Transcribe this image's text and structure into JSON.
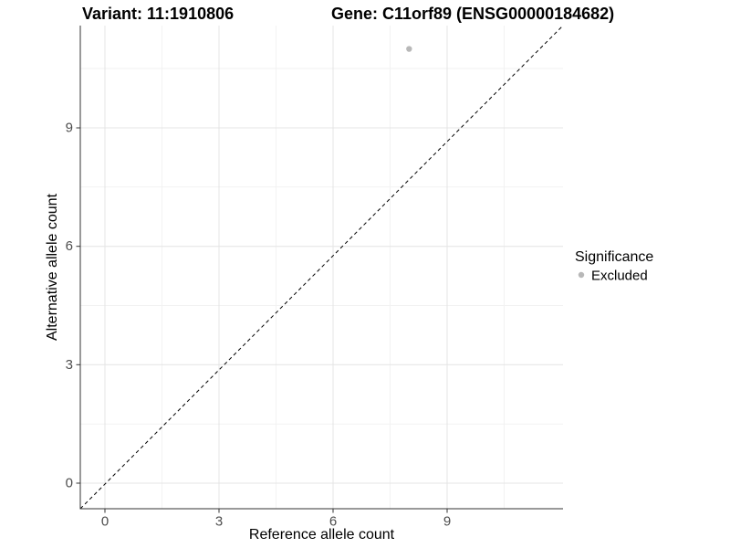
{
  "chart_data": {
    "type": "scatter",
    "title_left": "Variant: 11:1910806",
    "title_right": "Gene: C11orf89 (ENSG00000184682)",
    "xlabel": "Reference allele count",
    "ylabel": "Alternative allele count",
    "x_ticks": [
      "0",
      "3",
      "6",
      "9"
    ],
    "y_ticks": [
      "0",
      "3",
      "6",
      "9"
    ],
    "xlim": [
      -0.65,
      12.05
    ],
    "ylim": [
      -0.67,
      11.6
    ],
    "grid": "major+minor",
    "series": [
      {
        "name": "Excluded",
        "color": "#b8b8b8",
        "points": [
          {
            "x": 8,
            "y": 11
          }
        ]
      }
    ],
    "reference_line": {
      "type": "identity",
      "slope": 1,
      "intercept": 0,
      "style": "dashed",
      "color": "#000000"
    },
    "legend": {
      "title": "Significance",
      "position": "right",
      "items": [
        {
          "label": "Excluded",
          "color": "#b8b8b8",
          "marker": "circle"
        }
      ]
    }
  },
  "colors": {
    "background": "#ffffff",
    "axis_line": "#333333",
    "tick_label": "#4d4d4d",
    "grid_major": "#e4e4e4",
    "grid_minor": "#f2f2f2",
    "point": "#b8b8b8"
  }
}
